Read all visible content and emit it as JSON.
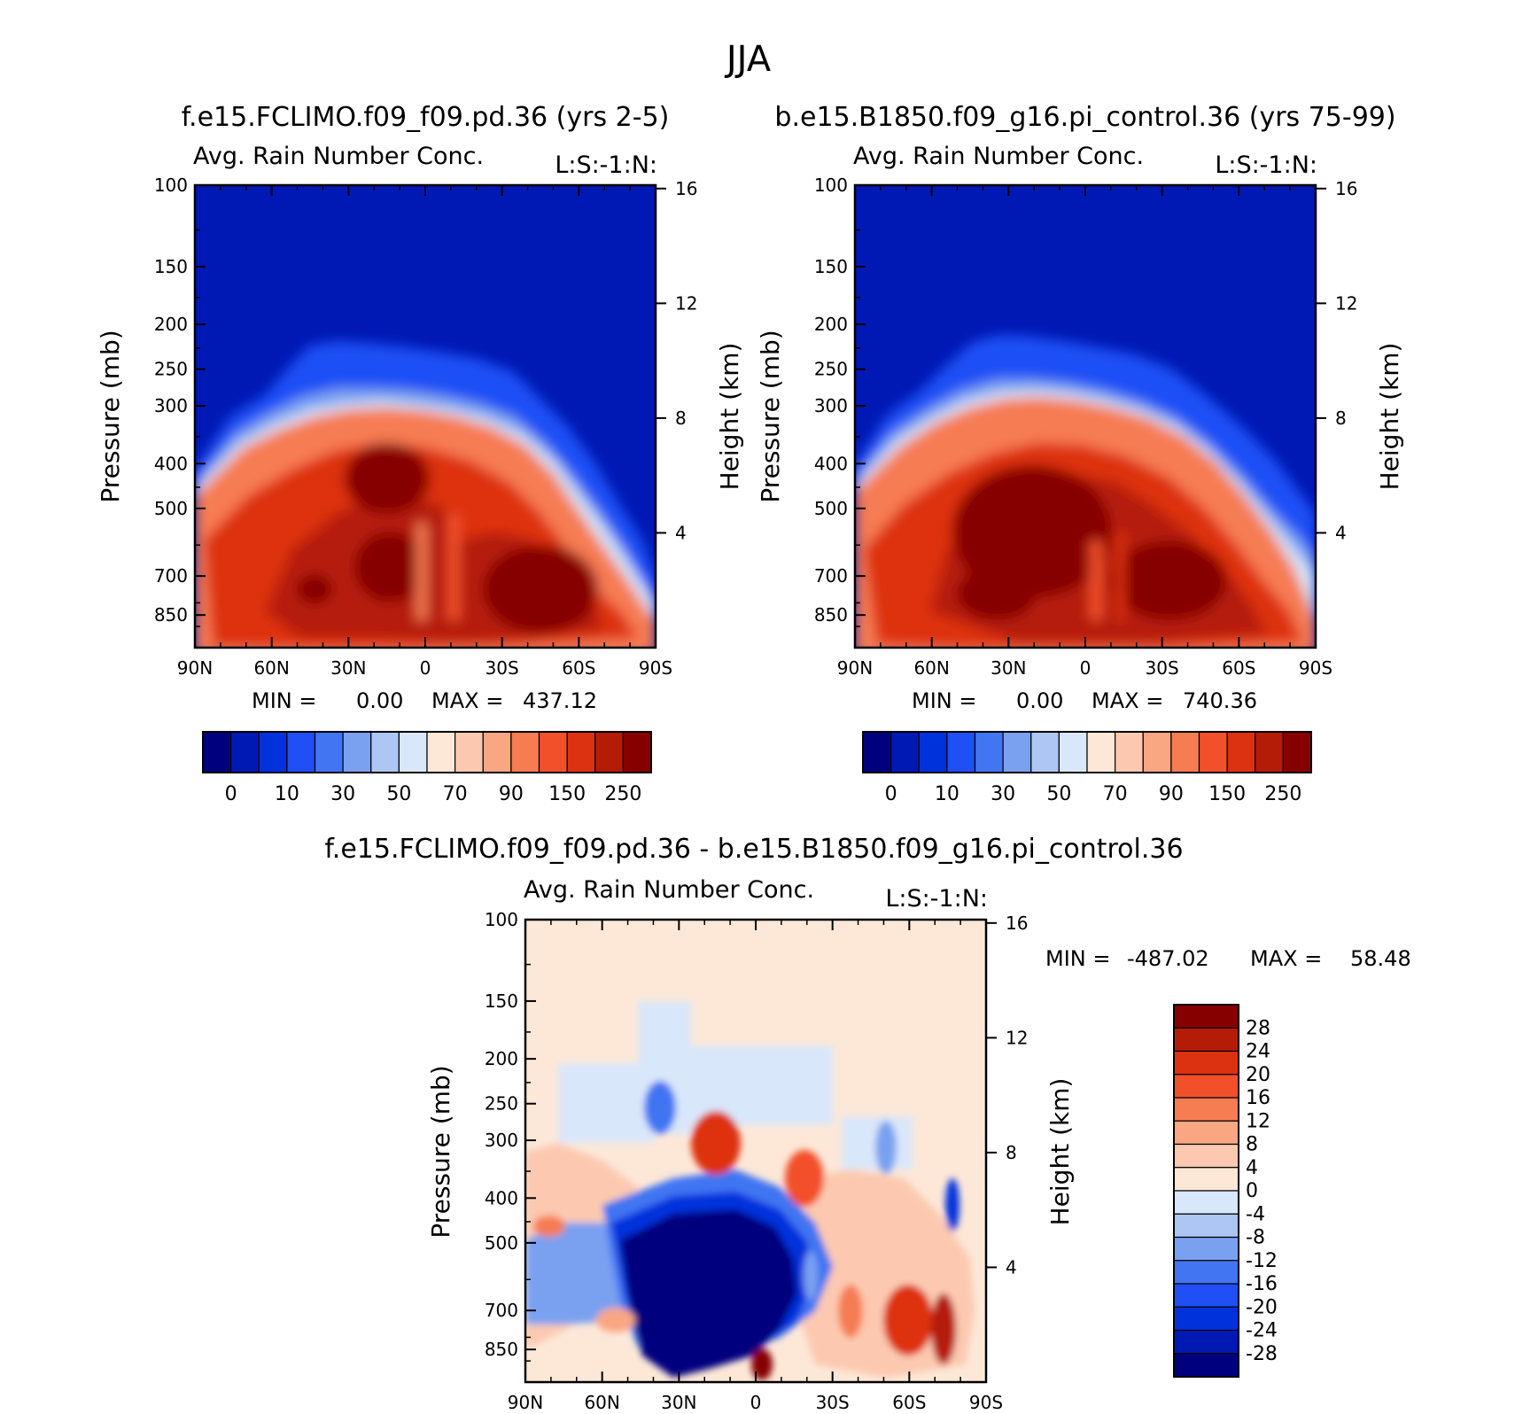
{
  "season": "JJA",
  "colors": {
    "cb_absolute": [
      "#00007f",
      "#0019b4",
      "#0032dc",
      "#1f4ff5",
      "#4175f2",
      "#7aa0f0",
      "#adc6f3",
      "#d9e7fa",
      "#fde8d8",
      "#fcc9b0",
      "#f9a683",
      "#f67c52",
      "#f2502a",
      "#dd3211",
      "#b51c08",
      "#870000"
    ],
    "cb_diff": [
      "#870000",
      "#b51c08",
      "#dd3211",
      "#f2502a",
      "#f67c52",
      "#f9a683",
      "#fcc9b0",
      "#fde8d8",
      "#d9e7fa",
      "#adc6f3",
      "#7aa0f0",
      "#4175f2",
      "#1f4ff5",
      "#0032dc",
      "#0019b4",
      "#00007f"
    ]
  },
  "chart_data": [
    {
      "type": "heatmap",
      "id": "panel_pd",
      "case_title": "f.e15.FCLIMO.f09_f09.pd.36 (yrs 2-5)",
      "title": "Avg. Rain Number Conc.",
      "corner_label": "L:S:-1:N:",
      "xlabel": "",
      "ylabel": "Pressure (mb)",
      "ylabel_right": "Height (km)",
      "x_ticks": [
        "90N",
        "60N",
        "30N",
        "0",
        "30S",
        "60S",
        "90S"
      ],
      "y_ticks": [
        100,
        150,
        200,
        250,
        300,
        400,
        500,
        700,
        850
      ],
      "y_right_ticks": [
        16,
        12,
        8,
        4
      ],
      "ylim": [
        100,
        1000
      ],
      "min_text": "MIN =",
      "min_value": "0.00",
      "max_text": "MAX =",
      "max_value": "437.12",
      "colorbar_labels": [
        "0",
        "10",
        "30",
        "50",
        "70",
        "90",
        "150",
        "250"
      ]
    },
    {
      "type": "heatmap",
      "id": "panel_pi",
      "case_title": "b.e15.B1850.f09_g16.pi_control.36 (yrs 75-99)",
      "title": "Avg. Rain Number Conc.",
      "corner_label": "L:S:-1:N:",
      "xlabel": "",
      "ylabel": "Pressure (mb)",
      "ylabel_right": "Height (km)",
      "x_ticks": [
        "90N",
        "60N",
        "30N",
        "0",
        "30S",
        "60S",
        "90S"
      ],
      "y_ticks": [
        100,
        150,
        200,
        250,
        300,
        400,
        500,
        700,
        850
      ],
      "y_right_ticks": [
        16,
        12,
        8,
        4
      ],
      "ylim": [
        100,
        1000
      ],
      "min_text": "MIN =",
      "min_value": "0.00",
      "max_text": "MAX =",
      "max_value": "740.36",
      "colorbar_labels": [
        "0",
        "10",
        "30",
        "50",
        "70",
        "90",
        "150",
        "250"
      ]
    },
    {
      "type": "heatmap",
      "id": "panel_diff",
      "case_title": "f.e15.FCLIMO.f09_f09.pd.36 - b.e15.B1850.f09_g16.pi_control.36",
      "title": "Avg. Rain Number Conc.",
      "corner_label": "L:S:-1:N:",
      "xlabel": "",
      "ylabel": "Pressure (mb)",
      "ylabel_right": "Height (km)",
      "x_ticks": [
        "90N",
        "60N",
        "30N",
        "0",
        "30S",
        "60S",
        "90S"
      ],
      "y_ticks": [
        100,
        150,
        200,
        250,
        300,
        400,
        500,
        700,
        850
      ],
      "y_right_ticks": [
        16,
        12,
        8,
        4
      ],
      "ylim": [
        100,
        1000
      ],
      "min_text": "MIN =",
      "min_value": "-487.02",
      "max_text": "MAX =",
      "max_value": "58.48",
      "colorbar_labels": [
        "28",
        "24",
        "20",
        "16",
        "12",
        "8",
        "4",
        "0",
        "-4",
        "-8",
        "-12",
        "-16",
        "-20",
        "-24",
        "-28"
      ]
    }
  ]
}
